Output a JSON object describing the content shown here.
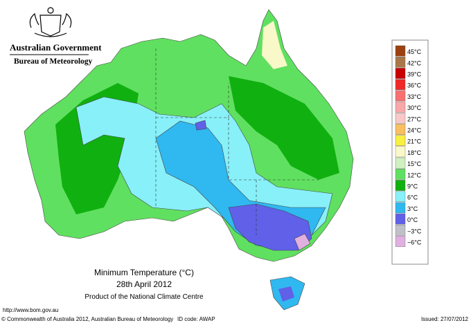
{
  "header": {
    "government": "Australian Government",
    "agency": "Bureau of Meteorology"
  },
  "map": {
    "title": "Minimum Temperature (°C)",
    "date": "28th April 2012",
    "subtitle": "Product of the National Climate Centre"
  },
  "legend": [
    {
      "label": "45°C",
      "color": "#9c4010"
    },
    {
      "label": "42°C",
      "color": "#a8784a"
    },
    {
      "label": "39°C",
      "color": "#c80000"
    },
    {
      "label": "36°C",
      "color": "#f02828"
    },
    {
      "label": "33°C",
      "color": "#f87070"
    },
    {
      "label": "30°C",
      "color": "#f8a8a8"
    },
    {
      "label": "27°C",
      "color": "#f8c8c8"
    },
    {
      "label": "24°C",
      "color": "#f8c060"
    },
    {
      "label": "21°C",
      "color": "#f8f040"
    },
    {
      "label": "18°C",
      "color": "#f8f8c8"
    },
    {
      "label": "15°C",
      "color": "#d0f0c0"
    },
    {
      "label": "12°C",
      "color": "#60e060"
    },
    {
      "label": "9°C",
      "color": "#10b010"
    },
    {
      "label": "6°C",
      "color": "#88f0f8"
    },
    {
      "label": "3°C",
      "color": "#30b8f0"
    },
    {
      "label": "0°C",
      "color": "#6060e8"
    },
    {
      "label": "−3°C",
      "color": "#c0c0c8"
    },
    {
      "label": "−6°C",
      "color": "#e0b0e0"
    }
  ],
  "footer": {
    "url": "http://www.bom.gov.au",
    "copyright": "© Commonwealth of Australia 2012, Australian Bureau of Meteorology",
    "id_code": "ID code: AWAP",
    "issued": "Issued: 27/07/2012"
  }
}
